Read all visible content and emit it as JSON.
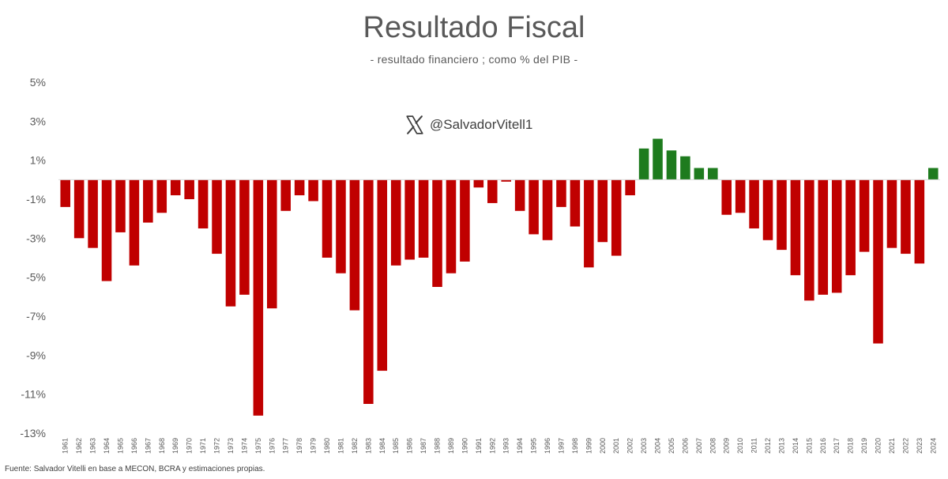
{
  "chart_data": {
    "type": "bar",
    "title": "Resultado Fiscal",
    "subtitle": "- resultado financiero ; como % del PIB -",
    "xlabel": "",
    "ylabel": "",
    "ylim": [
      -13,
      5
    ],
    "yticks": [
      5,
      3,
      1,
      -1,
      -3,
      -5,
      -7,
      -9,
      -11,
      -13
    ],
    "ytick_labels": [
      "5%",
      "3%",
      "1%",
      "-1%",
      "-3%",
      "-5%",
      "-7%",
      "-9%",
      "-11%",
      "-13%"
    ],
    "grid": false,
    "legend": "none",
    "positive_color": "#1e7b1e",
    "negative_color": "#c00000",
    "categories": [
      "1961",
      "1962",
      "1963",
      "1964",
      "1965",
      "1966",
      "1967",
      "1968",
      "1969",
      "1970",
      "1971",
      "1972",
      "1973",
      "1974",
      "1975",
      "1976",
      "1977",
      "1978",
      "1979",
      "1980",
      "1981",
      "1982",
      "1983",
      "1984",
      "1985",
      "1986",
      "1987",
      "1988",
      "1989",
      "1990",
      "1991",
      "1992",
      "1993",
      "1994",
      "1995",
      "1996",
      "1997",
      "1998",
      "1999",
      "2000",
      "2001",
      "2002",
      "2003",
      "2004",
      "2005",
      "2006",
      "2007",
      "2008",
      "2009",
      "2010",
      "2011",
      "2012",
      "2013",
      "2014",
      "2015",
      "2016",
      "2017",
      "2018",
      "2019",
      "2020",
      "2021",
      "2022",
      "2023",
      "2024"
    ],
    "values": [
      -1.4,
      -3.0,
      -3.5,
      -5.2,
      -2.7,
      -4.4,
      -2.2,
      -1.7,
      -0.8,
      -1.0,
      -2.5,
      -3.8,
      -6.5,
      -5.9,
      -12.1,
      -6.6,
      -1.6,
      -0.8,
      -1.1,
      -4.0,
      -4.8,
      -6.7,
      -11.5,
      -9.8,
      -4.4,
      -4.1,
      -4.0,
      -5.5,
      -4.8,
      -4.2,
      -0.4,
      -1.2,
      -0.1,
      -1.6,
      -2.8,
      -3.1,
      -1.4,
      -2.4,
      -4.5,
      -3.2,
      -3.9,
      -0.8,
      1.6,
      2.1,
      1.5,
      1.2,
      0.6,
      0.6,
      -1.8,
      -1.7,
      -2.5,
      -3.1,
      -3.6,
      -4.9,
      -6.2,
      -5.9,
      -5.8,
      -4.9,
      -3.7,
      -8.4,
      -3.5,
      -3.8,
      -4.3,
      0.6
    ]
  },
  "branding": {
    "logo_icon": "x-logo-icon",
    "handle": "@SalvadorVitell1"
  },
  "source": "Fuente: Salvador Vitelli en base a MECON, BCRA y estimaciones propias."
}
